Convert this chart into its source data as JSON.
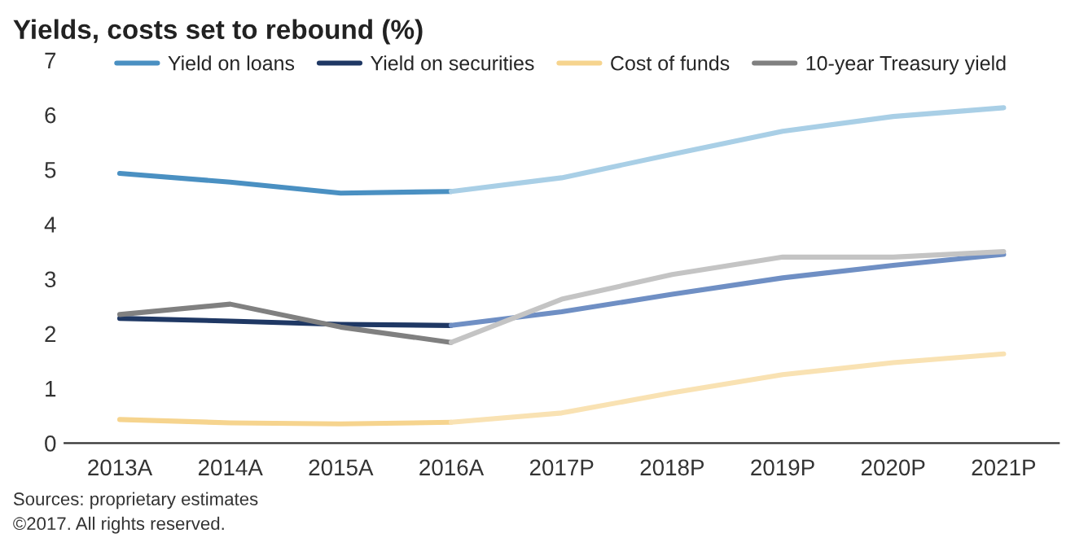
{
  "chart_data": {
    "type": "line",
    "title": "Yields, costs set to rebound (%)",
    "categories": [
      "2013A",
      "2014A",
      "2015A",
      "2016A",
      "2017P",
      "2018P",
      "2019P",
      "2020P",
      "2021P"
    ],
    "series": [
      {
        "name": "Yield on loans",
        "color": "#4a90c2",
        "values": [
          4.93,
          4.77,
          4.57,
          4.6,
          null,
          null,
          null,
          null,
          null
        ]
      },
      {
        "name": "Yield on securities",
        "color": "#1f3864",
        "values": [
          2.28,
          2.23,
          2.17,
          2.15,
          null,
          null,
          null,
          null,
          null
        ]
      },
      {
        "name": "Cost of funds",
        "color": "#f6d48e",
        "values": [
          0.43,
          0.37,
          0.35,
          0.38,
          null,
          null,
          null,
          null,
          null
        ]
      },
      {
        "name": "10-year Treasury yield",
        "color": "#808080",
        "values": [
          2.35,
          2.54,
          2.12,
          1.84,
          null,
          null,
          null,
          null,
          null
        ]
      },
      {
        "color": "#a9cfe6",
        "values": [
          null,
          null,
          null,
          4.6,
          4.85,
          5.28,
          5.7,
          5.97,
          6.13
        ]
      },
      {
        "color": "#6f8fc4",
        "values": [
          null,
          null,
          null,
          2.15,
          2.4,
          2.72,
          3.02,
          3.25,
          3.45
        ]
      },
      {
        "color": "#f9e2b3",
        "values": [
          null,
          null,
          null,
          0.38,
          0.55,
          0.92,
          1.25,
          1.47,
          1.63
        ]
      },
      {
        "color": "#c4c4c4",
        "values": [
          null,
          null,
          null,
          1.84,
          2.63,
          3.08,
          3.4,
          3.4,
          3.5
        ]
      }
    ],
    "ylim": [
      0,
      7
    ],
    "yticks": [
      0,
      1,
      2,
      3,
      4,
      5,
      6,
      7
    ],
    "grid": false,
    "legend": "top",
    "marker": "none",
    "line_style": "solid",
    "annotations": [
      "Sources: proprietary estimates",
      "©2017. All rights reserved."
    ]
  }
}
